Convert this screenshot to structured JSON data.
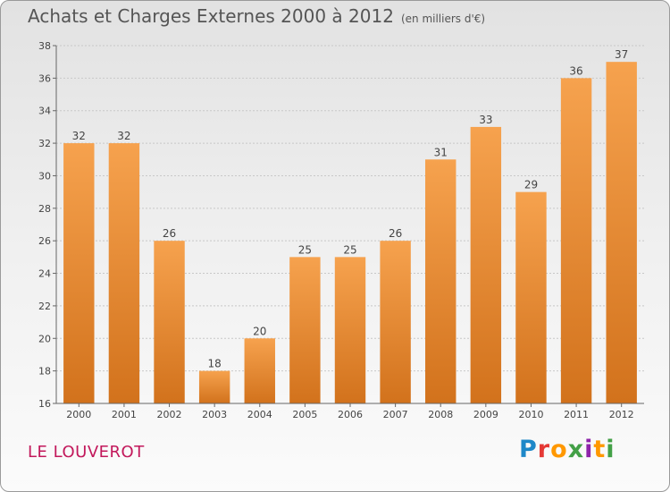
{
  "header": {
    "title": "Achats et Charges Externes 2000 à 2012",
    "subtitle": "(en milliers d'€)"
  },
  "footer": {
    "commune": "LE LOUVEROT",
    "logo": "Proxiti"
  },
  "colors": {
    "bar_light": "#f6a24e",
    "bar_dark": "#d2721c",
    "grid": "#c8c8c8",
    "axis": "#666666",
    "commune_text": "#c2185b"
  },
  "chart_data": {
    "type": "bar",
    "title": "Achats et Charges Externes 2000 à 2012",
    "subtitle": "(en milliers d'€)",
    "xlabel": "",
    "ylabel": "",
    "categories": [
      "2000",
      "2001",
      "2002",
      "2003",
      "2004",
      "2005",
      "2006",
      "2007",
      "2008",
      "2009",
      "2010",
      "2011",
      "2012"
    ],
    "values": [
      32,
      32,
      26,
      18,
      20,
      25,
      25,
      26,
      31,
      33,
      29,
      36,
      37
    ],
    "ylim": [
      16,
      38
    ],
    "yticks": [
      16,
      18,
      20,
      22,
      24,
      26,
      28,
      30,
      32,
      34,
      36,
      38
    ],
    "grid": true,
    "data_labels": true
  }
}
